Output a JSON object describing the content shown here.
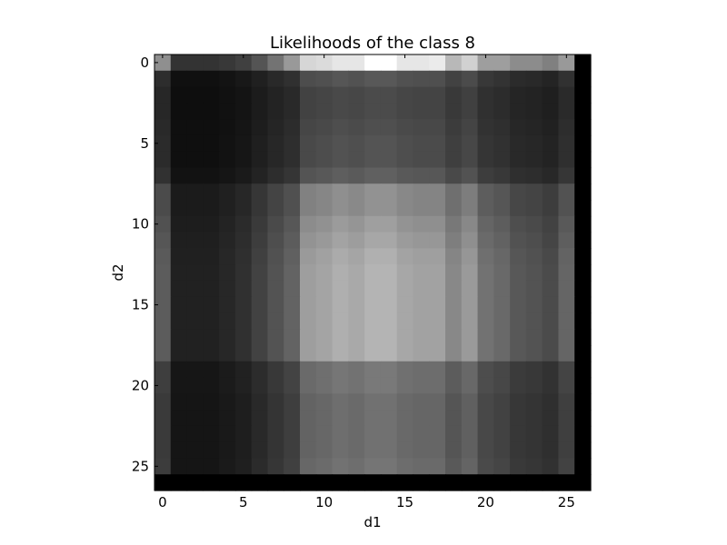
{
  "chart_data": {
    "type": "heatmap",
    "title": "Likelihoods of the class 8",
    "xlabel": "d1",
    "ylabel": "d2",
    "colormap": "gray",
    "xlim": [
      -0.5,
      26.5
    ],
    "ylim": [
      26.5,
      -0.5
    ],
    "xticks": [
      0,
      5,
      10,
      15,
      20,
      25
    ],
    "yticks": [
      0,
      5,
      10,
      15,
      20,
      25
    ],
    "rows": 27,
    "cols": 27,
    "col_profile": [
      0.42,
      0.15,
      0.15,
      0.15,
      0.18,
      0.22,
      0.3,
      0.38,
      0.45,
      0.72,
      0.75,
      0.8,
      0.77,
      0.82,
      0.82,
      0.76,
      0.74,
      0.74,
      0.62,
      0.7,
      0.52,
      0.48,
      0.4,
      0.38,
      0.34,
      0.46,
      0.0
    ],
    "row_profile": [
      1.0,
      0.42,
      0.36,
      0.36,
      0.38,
      0.4,
      0.4,
      0.46,
      0.7,
      0.7,
      0.76,
      0.8,
      0.84,
      0.86,
      0.86,
      0.86,
      0.86,
      0.86,
      0.86,
      0.58,
      0.58,
      0.54,
      0.54,
      0.54,
      0.54,
      0.56,
      0.0
    ],
    "row0_override": [
      0.56,
      0.2,
      0.2,
      0.2,
      0.22,
      0.25,
      0.33,
      0.45,
      0.6,
      0.84,
      0.86,
      0.9,
      0.9,
      1.0,
      1.0,
      0.9,
      0.9,
      0.92,
      0.72,
      0.82,
      0.62,
      0.62,
      0.55,
      0.55,
      0.5,
      0.6,
      0.0
    ],
    "black_last_row": true,
    "black_last_col": true
  }
}
